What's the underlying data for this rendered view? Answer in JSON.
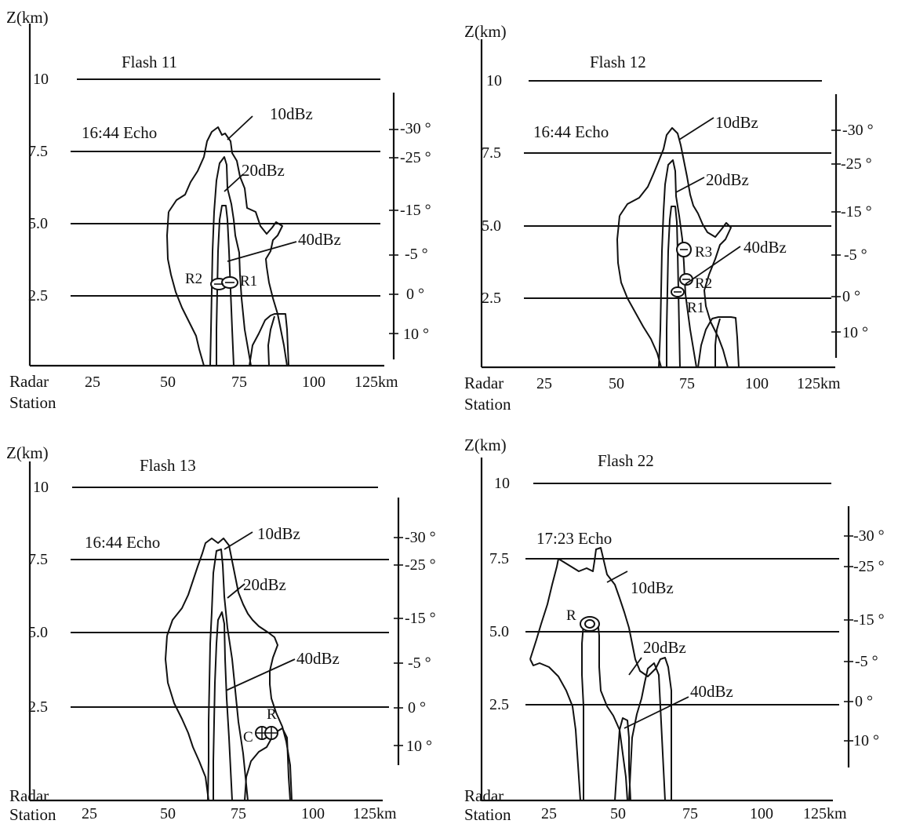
{
  "figure": {
    "panels": [
      {
        "id": "flash-11",
        "title": "Flash 11",
        "echo_time": "16:44 Echo",
        "y_axis_label": "Z(km)",
        "height_ticks": [
          "10",
          "7.5",
          "5.0",
          "2.5"
        ],
        "x_origin_label": [
          "Radar",
          "Station"
        ],
        "x_ticks": [
          "25",
          "50",
          "75",
          "100",
          "125km"
        ],
        "temperature_ticks": [
          "-30 °",
          "-25 °",
          "-15 °",
          "-5 °",
          "0 °",
          "10 °"
        ],
        "contour_labels": [
          "10dBz",
          "20dBz",
          "40dBz"
        ],
        "source_labels": [
          "R2",
          "R1"
        ]
      },
      {
        "id": "flash-12",
        "title": "Flash 12",
        "echo_time": "16:44 Echo",
        "y_axis_label": "Z(km)",
        "height_ticks": [
          "10",
          "7.5",
          "5.0",
          "2.5"
        ],
        "x_origin_label": [
          "Radar",
          "Station"
        ],
        "x_ticks": [
          "25",
          "50",
          "75",
          "100",
          "125km"
        ],
        "temperature_ticks": [
          "-30 °",
          "-25 °",
          "-15 °",
          "-5 °",
          "0 °",
          "10 °"
        ],
        "contour_labels": [
          "10dBz",
          "20dBz",
          "40dBz"
        ],
        "source_labels": [
          "R3",
          "R2",
          "R1"
        ]
      },
      {
        "id": "flash-13",
        "title": "Flash 13",
        "echo_time": "16:44 Echo",
        "y_axis_label": "Z(km)",
        "height_ticks": [
          "10",
          "7.5",
          "5.0",
          "2.5"
        ],
        "x_origin_label": [
          "Radar",
          "Station"
        ],
        "x_ticks": [
          "25",
          "50",
          "75",
          "100",
          "125km"
        ],
        "temperature_ticks": [
          "-30 °",
          "-25 °",
          "-15 °",
          "-5 °",
          "0 °",
          "10 °"
        ],
        "contour_labels": [
          "10dBz",
          "20dBz",
          "40dBz"
        ],
        "source_labels": [
          "R",
          "C"
        ]
      },
      {
        "id": "flash-22",
        "title": "Flash 22",
        "echo_time": "17:23 Echo",
        "y_axis_label": "Z(km)",
        "height_ticks": [
          "10",
          "7.5",
          "5.0",
          "2.5"
        ],
        "x_origin_label": [
          "Radar",
          "Station"
        ],
        "x_ticks": [
          "25",
          "50",
          "75",
          "100",
          "125km"
        ],
        "temperature_ticks": [
          "-30 °",
          "-25 °",
          "-15 °",
          "-5 °",
          "0 °",
          "10 °"
        ],
        "contour_labels": [
          "10dBz",
          "20dBz",
          "40dBz"
        ],
        "source_labels": [
          "R"
        ]
      }
    ]
  }
}
